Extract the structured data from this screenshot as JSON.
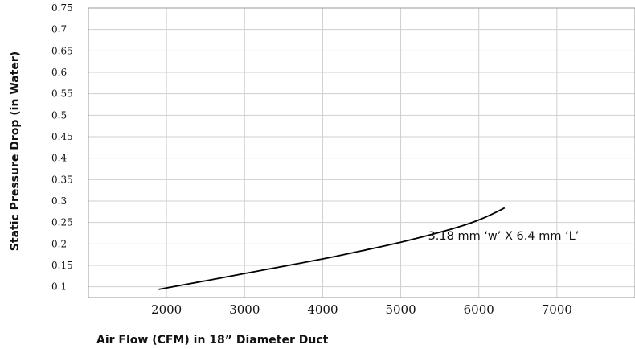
{
  "chart_data": {
    "type": "line",
    "xlabel": "Air Flow (CFM) in 18” Diameter Duct",
    "ylabel": "Static Pressure Drop (in Water)",
    "xlim": [
      1000,
      8000
    ],
    "ylim": [
      0.075,
      0.75
    ],
    "x_ticks": [
      2000,
      3000,
      4000,
      5000,
      6000,
      7000
    ],
    "x_tick_labels": [
      "2000",
      "3000",
      "4000",
      "5000",
      "6000",
      "7000"
    ],
    "y_ticks": [
      0.1,
      0.15,
      0.2,
      0.25,
      0.3,
      0.35,
      0.4,
      0.45,
      0.5,
      0.55,
      0.6,
      0.65,
      0.7,
      0.75
    ],
    "y_tick_labels": [
      "0.1",
      "0.15",
      "0.2",
      "0.25",
      "0.3",
      "0.35",
      "0.4",
      "0.45",
      "0.5",
      "0.55",
      "0.6",
      "0.65",
      "0.7",
      "0.75"
    ],
    "grid": true,
    "series": [
      {
        "name": "3.18 mm ‘w’ X 6.4 mm ‘L’",
        "color": "#000000",
        "x": [
          1900,
          2500,
          3000,
          3500,
          4000,
          4500,
          5000,
          5500,
          5800,
          6000,
          6200,
          6330
        ],
        "y": [
          0.094,
          0.114,
          0.131,
          0.148,
          0.165,
          0.184,
          0.204,
          0.227,
          0.243,
          0.256,
          0.272,
          0.284
        ]
      }
    ],
    "annotations": [
      {
        "text": "3.18 mm ‘w’ X 6.4 mm ‘L’",
        "x": 5350,
        "y": 0.21
      }
    ]
  }
}
